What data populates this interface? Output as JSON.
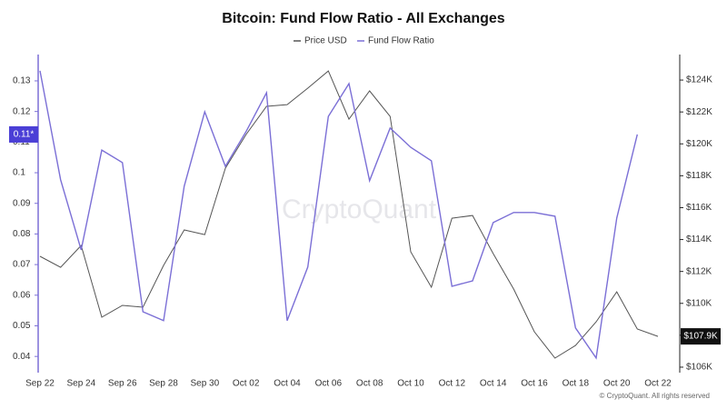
{
  "chart_data": {
    "type": "line",
    "title": "Bitcoin: Fund Flow Ratio - All Exchanges",
    "watermark": "CryptoQuant",
    "copyright": "© CryptoQuant. All rights reserved",
    "categories": [
      "Sep 22",
      null,
      "Sep 24",
      null,
      "Sep 26",
      null,
      "Sep 28",
      null,
      "Sep 30",
      null,
      "Oct 02",
      null,
      "Oct 04",
      null,
      "Oct 06",
      null,
      "Oct 08",
      null,
      "Oct 10",
      null,
      "Oct 12",
      null,
      "Oct 14",
      null,
      "Oct 16",
      null,
      "Oct 18",
      null,
      "Oct 20",
      null,
      "Oct 22"
    ],
    "series": [
      {
        "name": "Price USD",
        "color": "#555555",
        "axis": "y2",
        "values": [
          112950,
          112260,
          113630,
          109130,
          109870,
          109760,
          112380,
          114600,
          114310,
          118470,
          120580,
          122350,
          122460,
          123490,
          124570,
          121550,
          123320,
          121720,
          113230,
          111010,
          115340,
          115510,
          113120,
          110890,
          108220,
          106570,
          107360,
          108840,
          110720,
          108390,
          107930
        ],
        "value_labels": [
          null,
          null,
          null,
          null,
          null,
          null,
          null,
          null,
          null,
          null,
          null,
          null,
          null,
          null,
          null,
          null,
          null,
          null,
          null,
          null,
          null,
          null,
          null,
          null,
          null,
          null,
          null,
          null,
          null,
          null,
          "$107.9K"
        ]
      },
      {
        "name": "Fund Flow Ratio",
        "color": "#7b6fd6",
        "values": [
          0.1333,
          0.0977,
          0.0748,
          0.1074,
          0.1033,
          0.0546,
          0.0517,
          0.0956,
          0.1199,
          0.1021,
          0.1134,
          0.1261,
          0.0517,
          0.0692,
          0.1184,
          0.1291,
          0.0974,
          0.1146,
          0.1083,
          0.1039,
          0.0629,
          0.0647,
          0.0837,
          0.087,
          0.087,
          0.0858,
          0.0493,
          0.0395,
          0.0852,
          0.1125,
          null
        ],
        "value_labels": [
          null,
          null,
          null,
          null,
          null,
          null,
          null,
          null,
          null,
          null,
          null,
          null,
          null,
          null,
          null,
          null,
          null,
          null,
          null,
          null,
          null,
          null,
          null,
          null,
          null,
          null,
          null,
          null,
          null,
          "0.11*",
          null
        ]
      }
    ],
    "ylim": [
      0.0353,
      0.1386
    ],
    "yticks": [
      0.04,
      0.05,
      0.06,
      0.07,
      0.08,
      0.09,
      0.1,
      0.11,
      0.12,
      0.13
    ],
    "y2lim": [
      105770,
      125600
    ],
    "y2ticks": [
      {
        "value": 106000,
        "label": "$106K"
      },
      {
        "value": 108000,
        "label": "$108K"
      },
      {
        "value": 110000,
        "label": "$110K"
      },
      {
        "value": 112000,
        "label": "$112K"
      },
      {
        "value": 114000,
        "label": "$114K"
      },
      {
        "value": 116000,
        "label": "$116K"
      },
      {
        "value": 118000,
        "label": "$118K"
      },
      {
        "value": 120000,
        "label": "$120K"
      },
      {
        "value": 122000,
        "label": "$122K"
      },
      {
        "value": 124000,
        "label": "$124K"
      }
    ],
    "grid": false,
    "legend": "top"
  }
}
